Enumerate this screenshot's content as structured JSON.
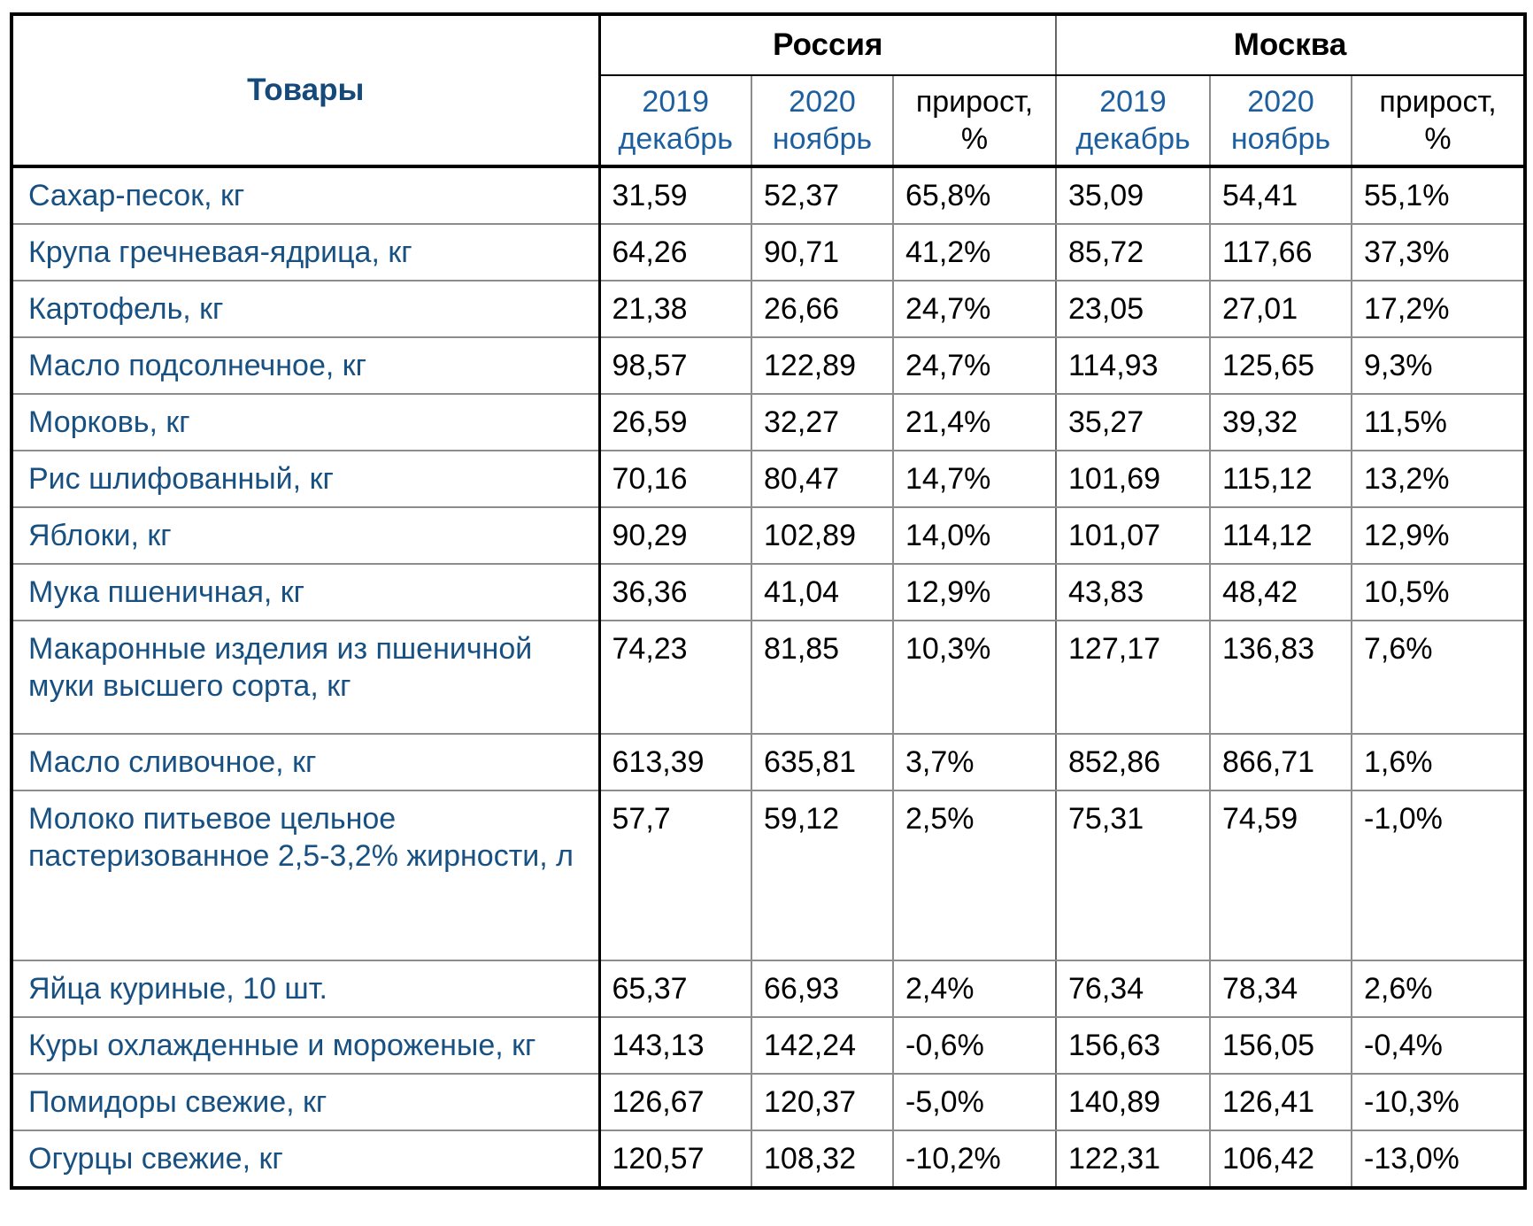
{
  "colors": {
    "products_header_blue": "#14497A",
    "row_label_blue": "#175081",
    "year_header_blue": "#1D5F9E",
    "value_black": "#000000",
    "grid_gray": "#8C8C8C",
    "heavy_border_black": "#000000",
    "background": "#FFFFFF"
  },
  "table_header": {
    "products": "Товары",
    "groups": [
      "Россия",
      "Москва"
    ],
    "sub_period_1": {
      "l1": "2019",
      "l2": "декабрь"
    },
    "sub_period_2": {
      "l1": "2020",
      "l2": "ноябрь"
    },
    "sub_growth": {
      "l1": "прирост,",
      "l2": "%"
    }
  },
  "chart_data": {
    "type": "table",
    "title": "",
    "column_groups": [
      "Товары",
      "Россия",
      "Москва"
    ],
    "columns": [
      "Товары",
      "Россия 2019 декабрь",
      "Россия 2020 ноябрь",
      "Россия прирост, %",
      "Москва 2019 декабрь",
      "Москва 2020 ноябрь",
      "Москва прирост, %"
    ],
    "rows": [
      {
        "label": "Сахар-песок, кг",
        "values": [
          "31,59",
          "52,37",
          "65,8%",
          "35,09",
          "54,41",
          "55,1%"
        ]
      },
      {
        "label": "Крупа гречневая-ядрица, кг",
        "values": [
          "64,26",
          "90,71",
          "41,2%",
          "85,72",
          "117,66",
          "37,3%"
        ]
      },
      {
        "label": "Картофель, кг",
        "values": [
          "21,38",
          "26,66",
          "24,7%",
          "23,05",
          "27,01",
          "17,2%"
        ]
      },
      {
        "label": "Масло подсолнечное, кг",
        "values": [
          "98,57",
          "122,89",
          "24,7%",
          "114,93",
          "125,65",
          "9,3%"
        ]
      },
      {
        "label": "Морковь, кг",
        "values": [
          "26,59",
          "32,27",
          "21,4%",
          "35,27",
          "39,32",
          "11,5%"
        ]
      },
      {
        "label": "Рис шлифованный, кг",
        "values": [
          "70,16",
          "80,47",
          "14,7%",
          "101,69",
          "115,12",
          "13,2%"
        ]
      },
      {
        "label": "Яблоки, кг",
        "values": [
          "90,29",
          "102,89",
          "14,0%",
          "101,07",
          "114,12",
          "12,9%"
        ]
      },
      {
        "label": "Мука пшеничная, кг",
        "values": [
          "36,36",
          "41,04",
          "12,9%",
          "43,83",
          "48,42",
          "10,5%"
        ]
      },
      {
        "label": "Макаронные изделия из пшеничной муки высшего сорта, кг",
        "h": 2,
        "values": [
          "74,23",
          "81,85",
          "10,3%",
          "127,17",
          "136,83",
          "7,6%"
        ]
      },
      {
        "label": "Масло сливочное, кг",
        "values": [
          "613,39",
          "635,81",
          "3,7%",
          "852,86",
          "866,71",
          "1,6%"
        ]
      },
      {
        "label": "Молоко питьевое цельное пастеризованное 2,5-3,2% жирности, л",
        "h": 3,
        "values": [
          "57,7",
          "59,12",
          "2,5%",
          "75,31",
          "74,59",
          "-1,0%"
        ]
      },
      {
        "label": "Яйца куриные, 10 шт.",
        "values": [
          "65,37",
          "66,93",
          "2,4%",
          "76,34",
          "78,34",
          "2,6%"
        ]
      },
      {
        "label": "Куры охлажденные и мороженые, кг",
        "values": [
          "143,13",
          "142,24",
          "-0,6%",
          "156,63",
          "156,05",
          "-0,4%"
        ]
      },
      {
        "label": "Помидоры свежие, кг",
        "values": [
          "126,67",
          "120,37",
          "-5,0%",
          "140,89",
          "126,41",
          "-10,3%"
        ]
      },
      {
        "label": "Огурцы свежие, кг",
        "values": [
          "120,57",
          "108,32",
          "-10,2%",
          "122,31",
          "106,42",
          "-13,0%"
        ]
      }
    ]
  }
}
